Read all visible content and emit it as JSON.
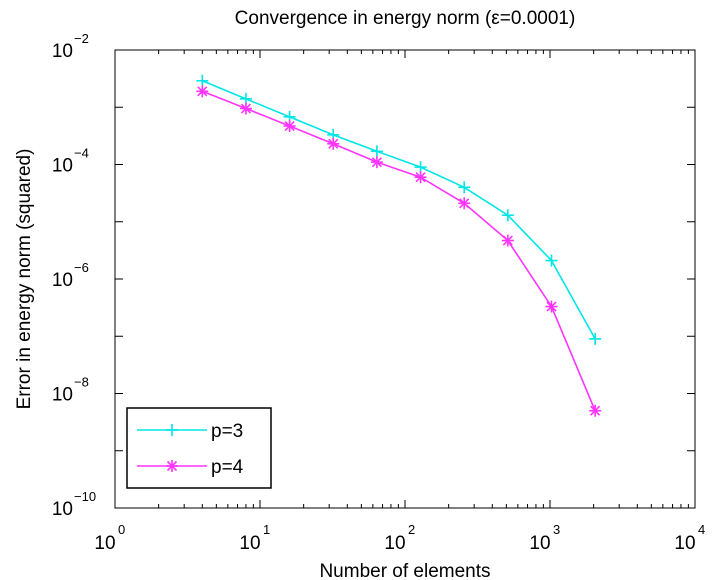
{
  "chart_data": {
    "type": "line",
    "title": "Convergence in energy norm (ε=0.0001)",
    "xlabel": "Number of elements",
    "ylabel": "Error in energy norm (squared)",
    "xscale": "log",
    "yscale": "log",
    "xlim": [
      1,
      10000
    ],
    "ylim": [
      1e-10,
      0.01
    ],
    "x_ticks": [
      {
        "base": "10",
        "exp": "0"
      },
      {
        "base": "10",
        "exp": "1"
      },
      {
        "base": "10",
        "exp": "2"
      },
      {
        "base": "10",
        "exp": "3"
      },
      {
        "base": "10",
        "exp": "4"
      }
    ],
    "y_ticks": [
      {
        "base": "10",
        "exp": "−10"
      },
      {
        "base": "10",
        "exp": "−8"
      },
      {
        "base": "10",
        "exp": "−6"
      },
      {
        "base": "10",
        "exp": "−4"
      },
      {
        "base": "10",
        "exp": "−2"
      }
    ],
    "grid": false,
    "legend_position": "bottom-left",
    "series": [
      {
        "name": "p=3",
        "color": "#00e5e5",
        "marker": "plus",
        "x": [
          4,
          8,
          16,
          32,
          64,
          128,
          256,
          512,
          1024,
          2048
        ],
        "y": [
          0.0029,
          0.0014,
          0.00068,
          0.00033,
          0.00017,
          9e-05,
          4e-05,
          1.3e-05,
          2.1e-06,
          9e-08
        ]
      },
      {
        "name": "p=4",
        "color": "#ff33ff",
        "marker": "asterisk",
        "x": [
          4,
          8,
          16,
          32,
          64,
          128,
          256,
          512,
          1024,
          2048
        ],
        "y": [
          0.0019,
          0.00095,
          0.00047,
          0.00023,
          0.00011,
          6e-05,
          2.1e-05,
          4.7e-06,
          3.3e-07,
          5e-09
        ]
      }
    ]
  }
}
